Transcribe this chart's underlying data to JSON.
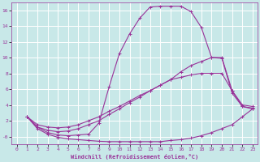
{
  "xlabel": "Windchill (Refroidissement éolien,°C)",
  "background_color": "#c8e8e8",
  "grid_color": "#ffffff",
  "line_color": "#993399",
  "xlim": [
    -0.5,
    23.5
  ],
  "ylim": [
    -1.0,
    17.0
  ],
  "yticks": [
    0,
    2,
    4,
    6,
    8,
    10,
    12,
    14,
    16
  ],
  "xticks": [
    0,
    1,
    2,
    3,
    4,
    5,
    6,
    7,
    8,
    9,
    10,
    11,
    12,
    13,
    14,
    15,
    16,
    17,
    18,
    19,
    20,
    21,
    22,
    23
  ],
  "curve1_x": [
    1,
    2,
    3,
    4,
    5,
    6,
    7,
    8,
    9,
    10,
    11,
    12,
    13,
    14,
    15,
    16,
    17,
    18,
    19,
    20,
    21,
    22,
    23
  ],
  "curve1_y": [
    2.5,
    1.0,
    0.3,
    -0.1,
    -0.3,
    -0.4,
    -0.5,
    -0.6,
    -0.65,
    -0.65,
    -0.65,
    -0.65,
    -0.65,
    -0.65,
    -0.5,
    -0.4,
    -0.2,
    0.1,
    0.5,
    1.0,
    1.5,
    2.5,
    3.5
  ],
  "curve2_x": [
    1,
    2,
    3,
    4,
    5,
    6,
    7,
    8,
    9,
    10,
    11,
    12,
    13,
    14,
    15,
    16,
    17,
    18,
    19,
    20,
    21,
    22,
    23
  ],
  "curve2_y": [
    2.5,
    1.2,
    0.5,
    0.2,
    0.1,
    0.2,
    0.3,
    1.7,
    6.3,
    10.5,
    13.0,
    15.0,
    16.4,
    16.5,
    16.5,
    16.5,
    15.8,
    13.8,
    10.0,
    9.9,
    5.5,
    3.8,
    3.5
  ],
  "curve3_x": [
    1,
    2,
    3,
    4,
    5,
    6,
    7,
    8,
    9,
    10,
    11,
    12,
    13,
    14,
    15,
    16,
    17,
    18,
    19,
    20,
    21,
    22,
    23
  ],
  "curve3_y": [
    2.5,
    1.2,
    0.8,
    0.6,
    0.7,
    1.0,
    1.5,
    2.0,
    2.8,
    3.5,
    4.3,
    5.0,
    5.8,
    6.5,
    7.2,
    7.5,
    7.8,
    8.0,
    8.0,
    8.0,
    5.8,
    4.0,
    3.8
  ],
  "curve4_x": [
    1,
    2,
    3,
    4,
    5,
    6,
    7,
    8,
    9,
    10,
    11,
    12,
    13,
    14,
    15,
    16,
    17,
    18,
    19,
    20,
    21,
    22,
    23
  ],
  "curve4_y": [
    2.5,
    1.5,
    1.2,
    1.1,
    1.2,
    1.5,
    2.0,
    2.5,
    3.2,
    3.8,
    4.5,
    5.2,
    5.8,
    6.5,
    7.2,
    8.2,
    9.0,
    9.5,
    10.0,
    10.0,
    5.8,
    3.8,
    3.6
  ]
}
